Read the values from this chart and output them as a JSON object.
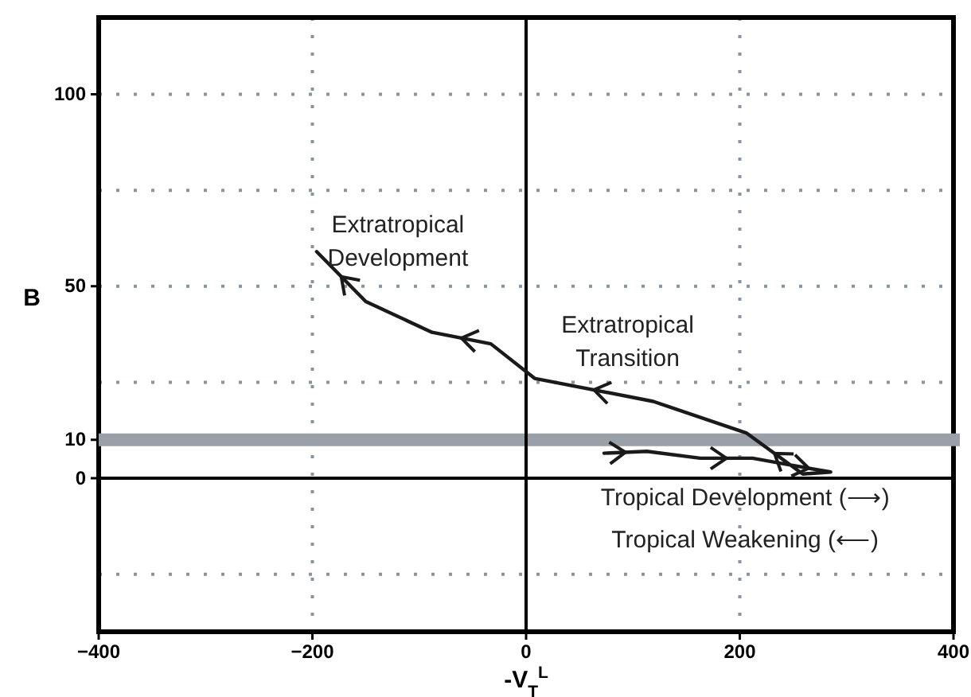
{
  "chart_data": {
    "type": "line",
    "xlabel": "-V$_{T}$$^{L}$",
    "ylabel": "B",
    "xlim": [
      -400,
      400
    ],
    "xticks": [
      -400,
      -200,
      0,
      200,
      400
    ],
    "ylim": [
      -40,
      120
    ],
    "yticks": [
      {
        "value": -25,
        "label": null
      },
      0,
      10,
      {
        "value": 25,
        "label": null
      },
      50,
      {
        "value": 75,
        "label": null
      },
      100
    ],
    "grid": true,
    "line_style": "solid",
    "marker": "none",
    "series": [
      {
        "color": "#1a1a1a",
        "x": [
          73,
          113,
          163,
          212,
          244,
          285,
          259,
          206,
          119,
          8,
          -33,
          -88,
          -150,
          -196
        ],
        "values": [
          6.5,
          7,
          5.2,
          5.2,
          3.6,
          1.6,
          1.1,
          11.8,
          20,
          26,
          35,
          38,
          46,
          59
        ]
      }
    ],
    "ref_lines": [
      {
        "axis": "y",
        "value": 10,
        "color": "#9aa0a8"
      }
    ],
    "annotations": [
      "Extratropical\nDevelopment",
      "Extratropical\nTransition",
      "Tropical Development (⟶)",
      "Tropical Weakening (⟵)"
    ]
  }
}
